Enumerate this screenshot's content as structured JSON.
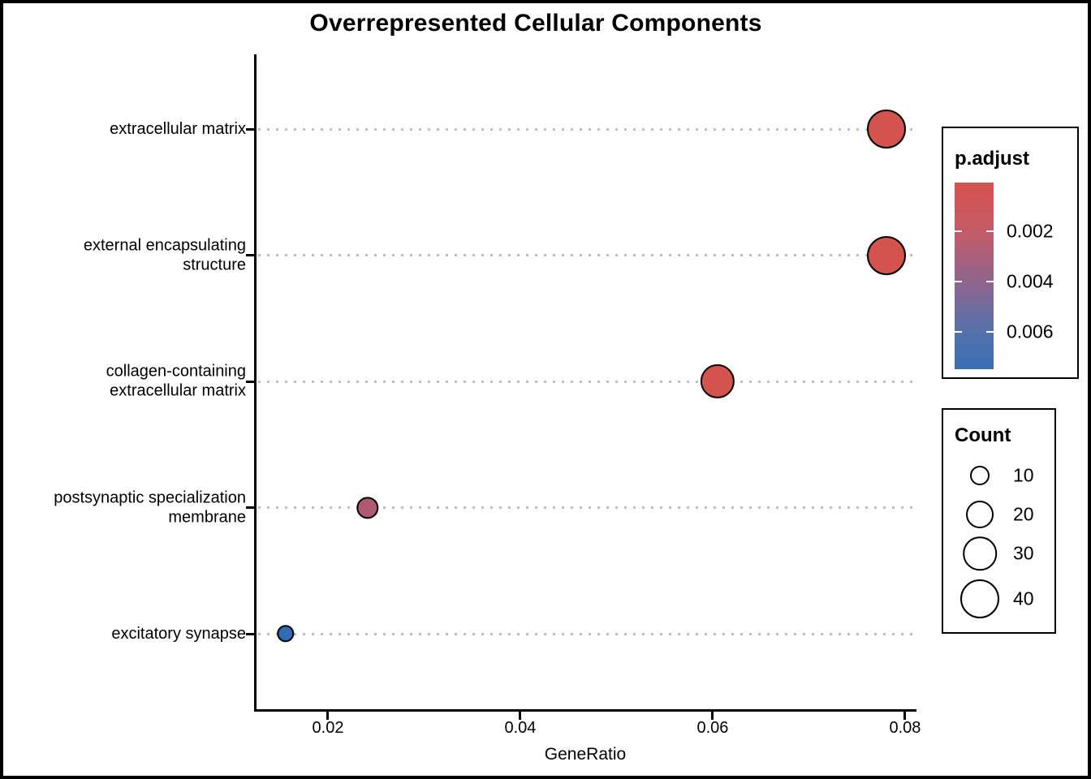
{
  "chart_data": {
    "type": "scatter",
    "subtype": "enrichment-dotplot",
    "title": "Overrepresented Cellular Components",
    "xlabel": "GeneRatio",
    "ylabel": "",
    "xlim": [
      0.01249,
      0.0811
    ],
    "x_ticks": [
      0.02,
      0.04,
      0.06,
      0.08
    ],
    "x_tick_labels": [
      "0.02",
      "0.04",
      "0.06",
      "0.08"
    ],
    "grid": "dotted-horizontal-gridlines",
    "grid_color": "#bfbfbf",
    "categories": [
      "extracellular matrix",
      "external encapsulating structure",
      "collagen-containing extracellular matrix",
      "postsynaptic specialization membrane",
      "excitatory synapse"
    ],
    "y_tick_labels": [
      "extracellular matrix",
      "external encapsulating\nstructure",
      "collagen-containing\nextracellular matrix",
      "postsynaptic specialization\nmembrane",
      "excitatory synapse"
    ],
    "points": [
      {
        "category": "extracellular matrix",
        "gene_ratio": 0.0781,
        "count": 40,
        "p_adjust": 0.0005,
        "color": "#D5534F"
      },
      {
        "category": "external encapsulating structure",
        "gene_ratio": 0.0781,
        "count": 40,
        "p_adjust": 0.0005,
        "color": "#D5534F"
      },
      {
        "category": "collagen-containing extracellular matrix",
        "gene_ratio": 0.0605,
        "count": 31,
        "p_adjust": 0.0008,
        "color": "#D5534F"
      },
      {
        "category": "postsynaptic specialization membrane",
        "gene_ratio": 0.0241,
        "count": 13,
        "p_adjust": 0.003,
        "color": "#AE5A70"
      },
      {
        "category": "excitatory synapse",
        "gene_ratio": 0.0156,
        "count": 8,
        "p_adjust": 0.0068,
        "color": "#2E6DB4"
      }
    ],
    "legends": {
      "color": {
        "title": "p.adjust",
        "tick_labels": [
          "0.002",
          "0.004",
          "0.006"
        ],
        "tick_values": [
          0.002,
          0.004,
          0.006
        ],
        "domain": [
          5e-05,
          0.0075
        ],
        "gradient_top_color": "#D6524E",
        "gradient_bottom_color": "#3A6FB5",
        "gradient_stops": [
          "#D6524E",
          "#C25B68",
          "#8E6590",
          "#5471AB",
          "#3A6FB5"
        ]
      },
      "size": {
        "title": "Count",
        "values": [
          10,
          20,
          30,
          40
        ],
        "labels": [
          "10",
          "20",
          "30",
          "40"
        ]
      }
    }
  }
}
